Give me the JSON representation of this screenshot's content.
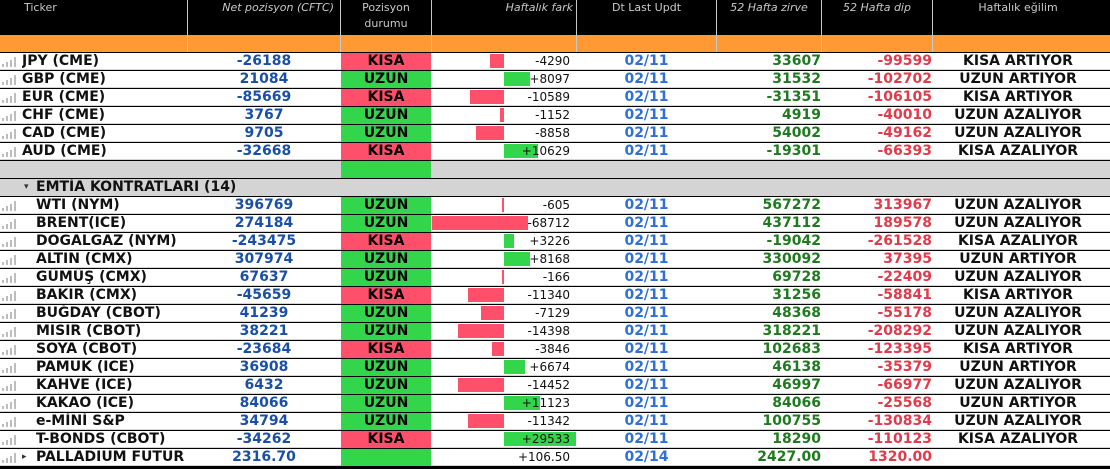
{
  "headers": {
    "ticker": "Ticker",
    "net": "Net pozisyon (CFTC)",
    "pos_line1": "Pozisyon",
    "pos_line2": "durumu",
    "weekly": "Haftalık fark",
    "dt": "Dt Last Updt",
    "hi": "52 Hafta zirve",
    "lo": "52 Hafta dip",
    "trend": "Haftalık eğilim"
  },
  "colors": {
    "kisa": "#ff4f6b",
    "uzun": "#33d64b",
    "header_band": "#ff9933"
  },
  "currencies": [
    {
      "ticker": "JPY (CME)",
      "net": "-26188",
      "pos": "KISA",
      "weekly": "-4290",
      "dt": "02/11",
      "hi": "33607",
      "lo": "-99599",
      "trend": "KISA ARTIYOR"
    },
    {
      "ticker": "GBP (CME)",
      "net": "21084",
      "pos": "UZUN",
      "weekly": "+8097",
      "dt": "02/11",
      "hi": "31532",
      "lo": "-102702",
      "trend": "UZUN ARTIYOR"
    },
    {
      "ticker": "EUR (CME)",
      "net": "-85669",
      "pos": "KISA",
      "weekly": "-10589",
      "dt": "02/11",
      "hi": "-31351",
      "lo": "-106105",
      "trend": "KISA ARTIYOR"
    },
    {
      "ticker": "CHF (CME)",
      "net": "3767",
      "pos": "UZUN",
      "weekly": "-1152",
      "dt": "02/11",
      "hi": "4919",
      "lo": "-40010",
      "trend": "UZUN AZALIYOR"
    },
    {
      "ticker": "CAD (CME)",
      "net": "9705",
      "pos": "UZUN",
      "weekly": "-8858",
      "dt": "02/11",
      "hi": "54002",
      "lo": "-49162",
      "trend": "UZUN AZALIYOR"
    },
    {
      "ticker": "AUD (CME)",
      "net": "-32668",
      "pos": "KISA",
      "weekly": "+10629",
      "dt": "02/11",
      "hi": "-19301",
      "lo": "-66393",
      "trend": "KISA AZALIYOR"
    }
  ],
  "group": {
    "label": "EMTİA KONTRATLARI (14)"
  },
  "commodities": [
    {
      "ticker": "WTI (NYM)",
      "net": "396769",
      "pos": "UZUN",
      "weekly": "-605",
      "dt": "02/11",
      "hi": "567272",
      "lo": "313967",
      "trend": "UZUN AZALIYOR"
    },
    {
      "ticker": "BRENT(ICE)",
      "net": "274184",
      "pos": "UZUN",
      "weekly": "-68712",
      "dt": "02/11",
      "hi": "437112",
      "lo": "189578",
      "trend": "UZUN AZALIYOR"
    },
    {
      "ticker": "DOGALGAZ (NYM)",
      "net": "-243475",
      "pos": "KISA",
      "weekly": "+3226",
      "dt": "02/11",
      "hi": "-19042",
      "lo": "-261528",
      "trend": "KISA AZALIYOR"
    },
    {
      "ticker": "ALTIN (CMX)",
      "net": "307974",
      "pos": "UZUN",
      "weekly": "+8168",
      "dt": "02/11",
      "hi": "330092",
      "lo": "37395",
      "trend": "UZUN ARTIYOR"
    },
    {
      "ticker": "GÜMÜŞ (CMX)",
      "net": "67637",
      "pos": "UZUN",
      "weekly": "-166",
      "dt": "02/11",
      "hi": "69728",
      "lo": "-22409",
      "trend": "UZUN AZALIYOR"
    },
    {
      "ticker": "BAKIR (CMX)",
      "net": "-45659",
      "pos": "KISA",
      "weekly": "-11340",
      "dt": "02/11",
      "hi": "31256",
      "lo": "-58841",
      "trend": "KISA ARTIYOR"
    },
    {
      "ticker": "BUĞDAY (CBOT)",
      "net": "41239",
      "pos": "UZUN",
      "weekly": "-7129",
      "dt": "02/11",
      "hi": "48368",
      "lo": "-55178",
      "trend": "UZUN AZALIYOR"
    },
    {
      "ticker": "MISIR (CBOT)",
      "net": "38221",
      "pos": "UZUN",
      "weekly": "-14398",
      "dt": "02/11",
      "hi": "318221",
      "lo": "-208292",
      "trend": "UZUN AZALIYOR"
    },
    {
      "ticker": "SOYA (CBOT)",
      "net": "-23684",
      "pos": "KISA",
      "weekly": "-3846",
      "dt": "02/11",
      "hi": "102683",
      "lo": "-123395",
      "trend": "KISA ARTIYOR"
    },
    {
      "ticker": "PAMUK (ICE)",
      "net": "36908",
      "pos": "UZUN",
      "weekly": "+6674",
      "dt": "02/11",
      "hi": "46138",
      "lo": "-35379",
      "trend": "UZUN ARTIYOR"
    },
    {
      "ticker": "KAHVE (ICE)",
      "net": "6432",
      "pos": "UZUN",
      "weekly": "-14452",
      "dt": "02/11",
      "hi": "46997",
      "lo": "-66977",
      "trend": "UZUN AZALIYOR"
    },
    {
      "ticker": "KAKAO (ICE)",
      "net": "84066",
      "pos": "UZUN",
      "weekly": "+11123",
      "dt": "02/11",
      "hi": "84066",
      "lo": "-25568",
      "trend": "UZUN ARTIYOR"
    },
    {
      "ticker": "e-MİNİ S&P",
      "net": "34794",
      "pos": "UZUN",
      "weekly": "-11342",
      "dt": "02/11",
      "hi": "100755",
      "lo": "-130834",
      "trend": "UZUN AZALIYOR"
    },
    {
      "ticker": "T-BONDS (CBOT)",
      "net": "-34262",
      "pos": "KISA",
      "weekly": "+29533",
      "dt": "02/11",
      "hi": "18290",
      "lo": "-110123",
      "trend": "KISA AZALIYOR"
    },
    {
      "ticker": "PALLADIUM FUTUR",
      "net": "2316.70",
      "pos": "",
      "weekly": "+106.50",
      "dt": "02/14",
      "hi": "2427.00",
      "lo": "1320.00",
      "trend": ""
    }
  ]
}
